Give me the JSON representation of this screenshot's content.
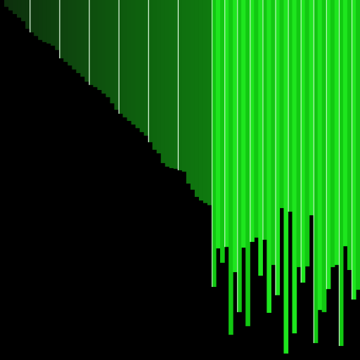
{
  "visual": {
    "kind": "bar-visualization",
    "background": "#000000",
    "colors": {
      "dark_ramp_start": "#0d2e0d",
      "dark_ramp_end": "#0f7a0f",
      "bright_a": "#12c812",
      "bright_b": "#1ee61e",
      "divider": "#e8ffe8"
    },
    "dark_section": {
      "column_count": 50,
      "levels": [
        0.0,
        0.019,
        0.029,
        0.039,
        0.049,
        0.059,
        0.08,
        0.09,
        0.1,
        0.111,
        0.117,
        0.121,
        0.127,
        0.139,
        0.162,
        0.172,
        0.182,
        0.193,
        0.203,
        0.213,
        0.227,
        0.236,
        0.242,
        0.25,
        0.26,
        0.27,
        0.287,
        0.305,
        0.316,
        0.326,
        0.336,
        0.346,
        0.356,
        0.367,
        0.377,
        0.395,
        0.416,
        0.426,
        0.453,
        0.463,
        0.467,
        0.469,
        0.473,
        0.477,
        0.51,
        0.527,
        0.547,
        0.557,
        0.564,
        0.57
      ],
      "divider_columns": [
        7,
        14,
        21,
        28,
        35,
        42
      ]
    },
    "bright_section": {
      "column_count": 35,
      "levels": [
        0.797,
        0.69,
        0.73,
        0.686,
        0.93,
        0.756,
        0.867,
        0.688,
        0.906,
        0.672,
        0.66,
        0.766,
        0.666,
        0.869,
        0.736,
        0.82,
        0.578,
        0.982,
        0.588,
        0.926,
        0.742,
        0.785,
        0.74,
        0.598,
        0.953,
        0.861,
        0.867,
        0.803,
        0.742,
        0.736,
        0.961,
        0.684,
        0.75,
        0.832,
        0.805
      ],
      "accent_columns": [
        0,
        3,
        6,
        9,
        12,
        15,
        18,
        21,
        24,
        27,
        30,
        33
      ]
    }
  }
}
